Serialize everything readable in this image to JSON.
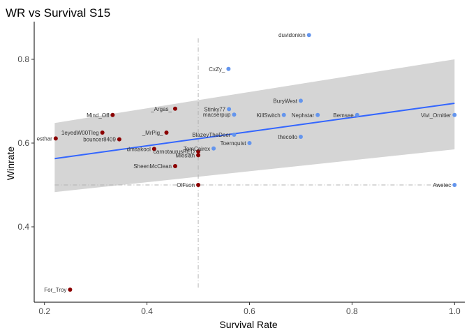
{
  "chart_data": {
    "type": "scatter",
    "title": "WR vs Survival S15",
    "xlabel": "Survival Rate",
    "ylabel": "Winrate",
    "xlim": [
      0.18,
      1.02
    ],
    "ylim": [
      0.22,
      0.89
    ],
    "xticks": [
      0.2,
      0.4,
      0.6,
      0.8,
      1.0
    ],
    "xtick_labels": [
      "0.2",
      "0.4",
      "0.6",
      "0.8",
      "1.0"
    ],
    "yticks": [
      0.4,
      0.6,
      0.8
    ],
    "ytick_labels": [
      "0.4",
      "0.6",
      "0.8"
    ],
    "grid": false,
    "reference_lines": {
      "x": 0.5,
      "y": 0.5
    },
    "trend": {
      "x": [
        0.22,
        1.0
      ],
      "y": [
        0.563,
        0.695
      ],
      "band_lower": [
        0.483,
        0.585
      ],
      "band_upper": [
        0.648,
        0.8
      ]
    },
    "colors": {
      "above": "#6495ED",
      "below": "#8B0000",
      "trend": "#3366FF",
      "band": "#D3D3D3",
      "ref": "#B3B3B3"
    },
    "points": [
      {
        "label": "duvidonion",
        "x": 0.716,
        "y": 0.858,
        "group": "above"
      },
      {
        "label": "CxZy_",
        "x": 0.559,
        "y": 0.777,
        "group": "above"
      },
      {
        "label": "BuryWest",
        "x": 0.7,
        "y": 0.701,
        "group": "above"
      },
      {
        "label": "Stinky77",
        "x": 0.56,
        "y": 0.681,
        "group": "above"
      },
      {
        "label": "macserpup",
        "x": 0.57,
        "y": 0.668,
        "group": "above"
      },
      {
        "label": "KillSwitch",
        "x": 0.667,
        "y": 0.667,
        "group": "above"
      },
      {
        "label": "Nephstar",
        "x": 0.733,
        "y": 0.667,
        "group": "above"
      },
      {
        "label": "Bemsee",
        "x": 0.81,
        "y": 0.667,
        "group": "above"
      },
      {
        "label": "Vivi_Ornitier",
        "x": 1.0,
        "y": 0.667,
        "group": "above"
      },
      {
        "label": "Mind_Off",
        "x": 0.333,
        "y": 0.667,
        "group": "below"
      },
      {
        "label": "_Argas_",
        "x": 0.455,
        "y": 0.682,
        "group": "below"
      },
      {
        "label": "1eyedW00Tleg",
        "x": 0.313,
        "y": 0.625,
        "group": "below"
      },
      {
        "label": "_MrPig_",
        "x": 0.438,
        "y": 0.625,
        "group": "below"
      },
      {
        "label": "esthar",
        "x": 0.222,
        "y": 0.611,
        "group": "below"
      },
      {
        "label": "bouncer8409",
        "x": 0.346,
        "y": 0.609,
        "group": "below"
      },
      {
        "label": "BlazeyTheDeer",
        "x": 0.57,
        "y": 0.62,
        "group": "above"
      },
      {
        "label": "thecollo",
        "x": 0.7,
        "y": 0.615,
        "group": "above"
      },
      {
        "label": "Toernquist",
        "x": 0.6,
        "y": 0.6,
        "group": "above"
      },
      {
        "label": "TomCairex",
        "x": 0.53,
        "y": 0.587,
        "group": "above"
      },
      {
        "label": "dmaskool",
        "x": 0.414,
        "y": 0.586,
        "group": "below"
      },
      {
        "label": "carnotaurusRED",
        "x": 0.5,
        "y": 0.58,
        "group": "below"
      },
      {
        "label": "Miesian",
        "x": 0.5,
        "y": 0.571,
        "group": "below"
      },
      {
        "label": "SheenMcClean",
        "x": 0.455,
        "y": 0.545,
        "group": "below"
      },
      {
        "label": "OlFson",
        "x": 0.5,
        "y": 0.5,
        "group": "below"
      },
      {
        "label": "Awetec",
        "x": 1.0,
        "y": 0.5,
        "group": "above"
      },
      {
        "label": "For_Troy",
        "x": 0.25,
        "y": 0.25,
        "group": "below"
      }
    ]
  }
}
